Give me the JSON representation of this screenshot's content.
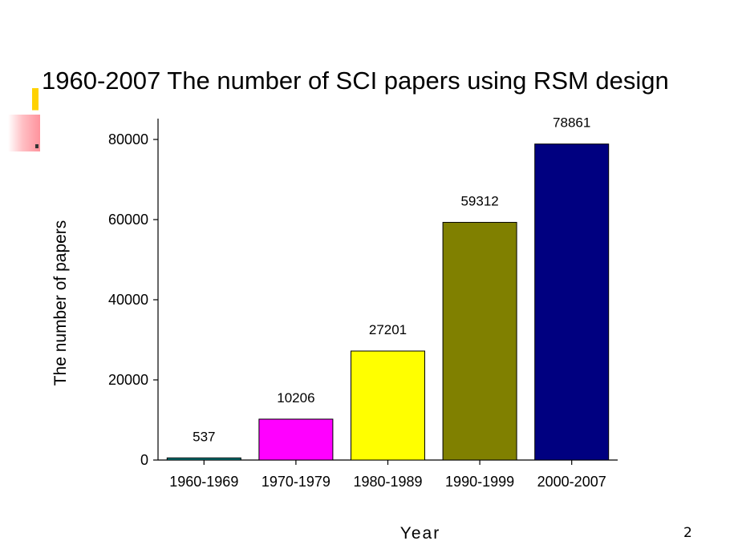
{
  "slide": {
    "title": "1960-2007 The number of SCI papers using RSM design",
    "page_number": "2"
  },
  "chart_data": {
    "type": "bar",
    "title": "1960-2007 The number of SCI papers using RSM design",
    "xlabel": "Year",
    "ylabel": "The number of papers",
    "categories": [
      "1960-1969",
      "1970-1979",
      "1980-1989",
      "1990-1999",
      "2000-2007"
    ],
    "values": [
      537,
      10206,
      27201,
      59312,
      78861
    ],
    "value_labels": [
      "537",
      "10206",
      "27201",
      "59312",
      "78861"
    ],
    "colors": [
      "#008080",
      "#ff00ff",
      "#ffff00",
      "#808000",
      "#000080"
    ],
    "ylim": [
      0,
      85000
    ],
    "yticks": [
      0,
      20000,
      40000,
      60000,
      80000
    ],
    "ytick_labels": [
      "0",
      "20000",
      "40000",
      "60000",
      "80000"
    ],
    "grid": false,
    "legend": "none"
  }
}
